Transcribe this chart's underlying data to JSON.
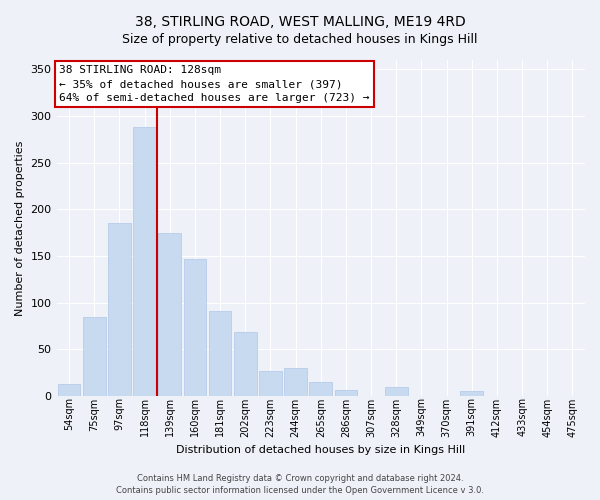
{
  "title": "38, STIRLING ROAD, WEST MALLING, ME19 4RD",
  "subtitle": "Size of property relative to detached houses in Kings Hill",
  "xlabel": "Distribution of detached houses by size in Kings Hill",
  "ylabel": "Number of detached properties",
  "bin_labels": [
    "54sqm",
    "75sqm",
    "97sqm",
    "118sqm",
    "139sqm",
    "160sqm",
    "181sqm",
    "202sqm",
    "223sqm",
    "244sqm",
    "265sqm",
    "286sqm",
    "307sqm",
    "328sqm",
    "349sqm",
    "370sqm",
    "391sqm",
    "412sqm",
    "433sqm",
    "454sqm",
    "475sqm"
  ],
  "bar_values": [
    13,
    85,
    185,
    288,
    175,
    147,
    91,
    69,
    27,
    30,
    15,
    6,
    0,
    10,
    0,
    0,
    5,
    0,
    0,
    0,
    0
  ],
  "bar_color": "#c8daf0",
  "bar_edge_color": "#b0c8e8",
  "vline_color": "#cc0000",
  "annotation_title": "38 STIRLING ROAD: 128sqm",
  "annotation_line1": "← 35% of detached houses are smaller (397)",
  "annotation_line2": "64% of semi-detached houses are larger (723) →",
  "annotation_box_facecolor": "#ffffff",
  "annotation_box_edgecolor": "#cc0000",
  "ylim": [
    0,
    360
  ],
  "yticks": [
    0,
    50,
    100,
    150,
    200,
    250,
    300,
    350
  ],
  "footer1": "Contains HM Land Registry data © Crown copyright and database right 2024.",
  "footer2": "Contains public sector information licensed under the Open Government Licence v 3.0.",
  "bg_color": "#eef2f8",
  "plot_bg_color": "#eef2f8",
  "grid_color": "#ffffff",
  "title_fontsize": 10,
  "subtitle_fontsize": 9,
  "ylabel_fontsize": 8,
  "xlabel_fontsize": 8,
  "tick_fontsize": 7,
  "ann_fontsize": 8,
  "footer_fontsize": 6
}
